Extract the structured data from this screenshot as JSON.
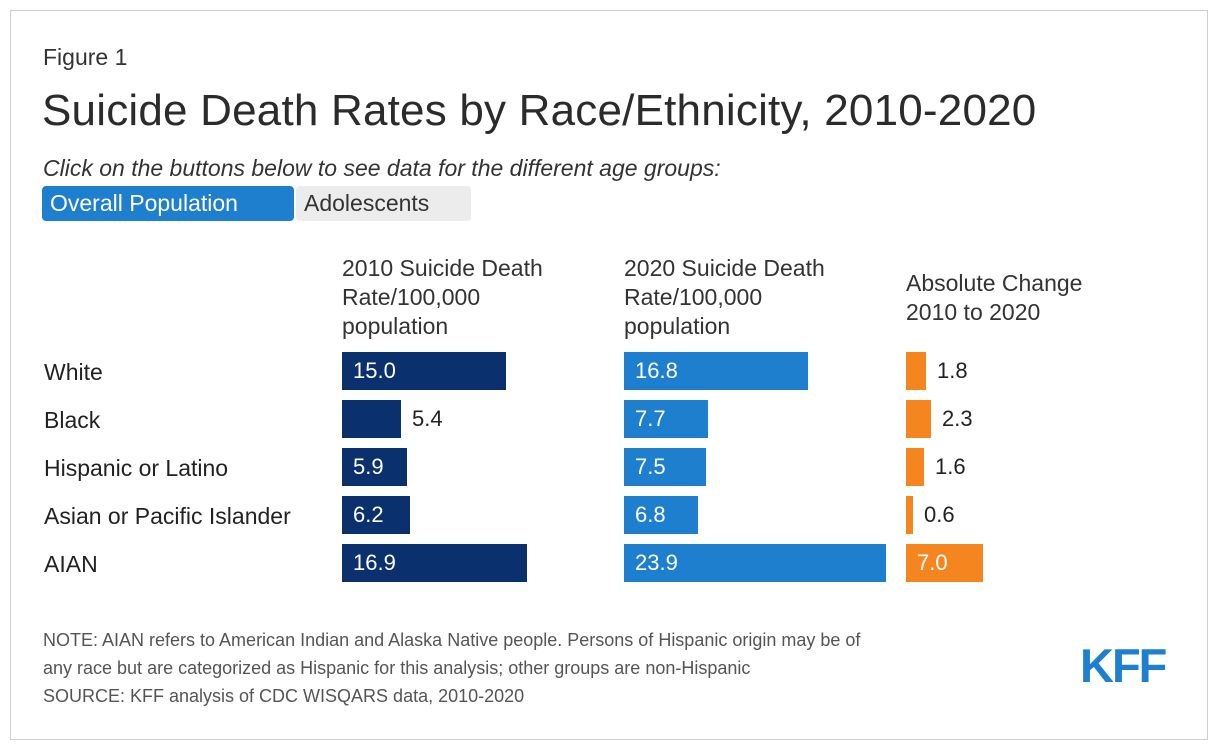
{
  "header": {
    "figure_label": "Figure 1",
    "title": "Suicide Death Rates by Race/Ethnicity, 2010-2020",
    "subtitle": "Click on the buttons below to see data for the different age groups:"
  },
  "buttons": {
    "overall": "Overall Population",
    "adolescents": "Adolescents"
  },
  "colors": {
    "col2010": "#0b306e",
    "col2020": "#1f7fcf",
    "change": "#f5861f",
    "active_button": "#1f7fcf",
    "logo": "#1f7fcf"
  },
  "chart_data": {
    "type": "bar",
    "categories": [
      "White",
      "Black",
      "Hispanic or Latino",
      "Asian or Pacific Islander",
      "AIAN"
    ],
    "series": [
      {
        "name": "2010 Suicide Death Rate/100,000 population",
        "header_lines": [
          "2010 Suicide Death",
          "Rate/100,000",
          "population"
        ],
        "values": [
          15.0,
          5.4,
          5.9,
          6.2,
          16.9
        ]
      },
      {
        "name": "2020 Suicide Death Rate/100,000 population",
        "header_lines": [
          "2020 Suicide Death",
          "Rate/100,000",
          "population"
        ],
        "values": [
          16.8,
          7.7,
          7.5,
          6.8,
          23.9
        ]
      },
      {
        "name": "Absolute Change 2010 to 2020",
        "header_lines": [
          "Absolute Change",
          "2010 to 2020"
        ],
        "values": [
          1.8,
          2.3,
          1.6,
          0.6,
          7.0
        ]
      }
    ],
    "title": "Suicide Death Rates by Race/Ethnicity, 2010-2020",
    "xlabel": "",
    "ylabel": ""
  },
  "footer": {
    "note_line1": "NOTE: AIAN refers to American Indian and Alaska Native people. Persons of Hispanic origin may be of",
    "note_line2": "any race but are categorized as Hispanic for this analysis; other groups are non-Hispanic",
    "source": "SOURCE: KFF analysis of CDC WISQARS data, 2010-2020",
    "logo_text": "KFF"
  }
}
